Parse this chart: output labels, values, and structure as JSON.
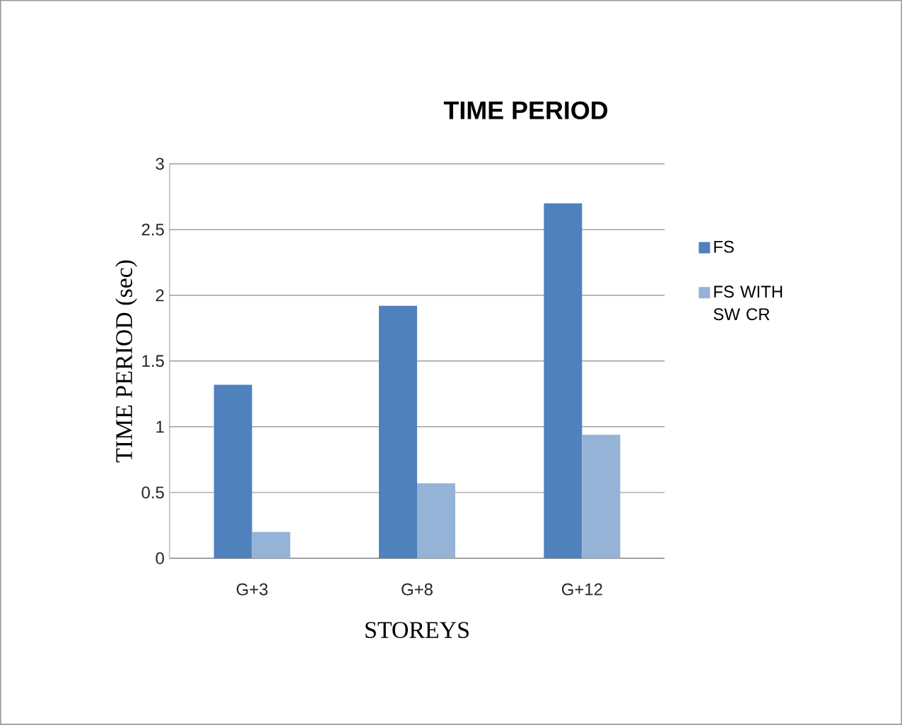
{
  "chart_data": {
    "type": "bar",
    "title": "TIME PERIOD",
    "xlabel": "STOREYS",
    "ylabel": "TIME PERIOD (sec)",
    "categories": [
      "G+3",
      "G+8",
      "G+12"
    ],
    "series": [
      {
        "name": "FS",
        "color": "#4f81bd",
        "values": [
          1.32,
          1.92,
          2.7
        ]
      },
      {
        "name": "FS WITH SW CR",
        "color": "#95b3d7",
        "values": [
          0.2,
          0.57,
          0.94
        ]
      }
    ],
    "ylim": [
      0,
      3
    ],
    "yticks": [
      0,
      0.5,
      1,
      1.5,
      2,
      2.5,
      3
    ],
    "grid": "y",
    "legend": "right"
  }
}
